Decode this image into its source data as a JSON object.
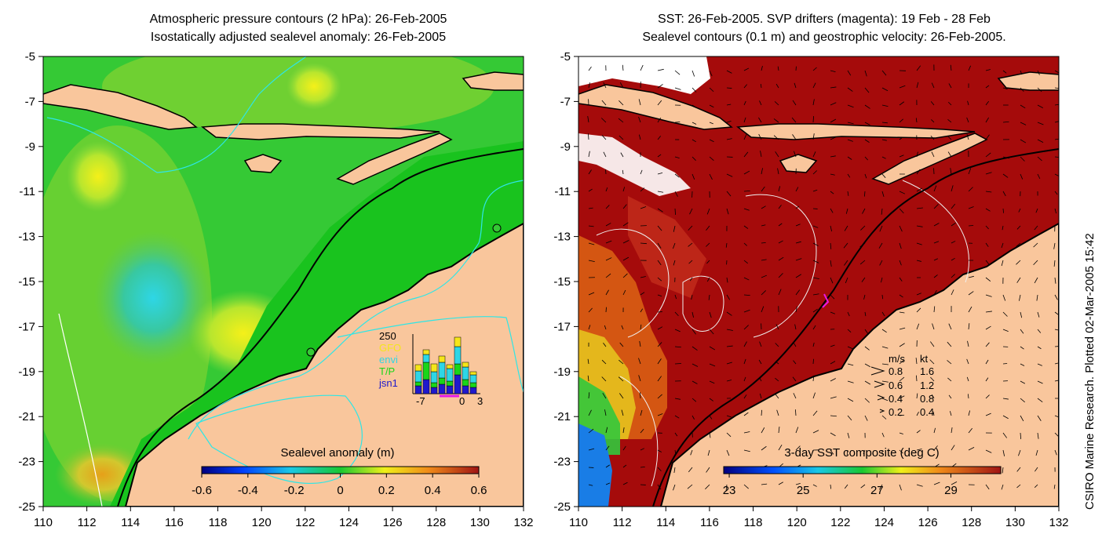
{
  "left_panel": {
    "title_line1": "Atmospheric pressure contours (2 hPa): 26-Feb-2005",
    "title_line2": "Isostatically adjusted sealevel anomaly: 26-Feb-2005",
    "y_ticks": [
      "-5",
      "-7",
      "-9",
      "-11",
      "-13",
      "-15",
      "-17",
      "-19",
      "-21",
      "-23",
      "-25"
    ],
    "x_ticks": [
      "110",
      "112",
      "114",
      "116",
      "118",
      "120",
      "122",
      "124",
      "126",
      "128",
      "130",
      "132"
    ],
    "colorbar_label": "Sealevel anomaly (m)",
    "colorbar_ticks": [
      "-0.6",
      "-0.4",
      "-0.2",
      "0",
      "0.2",
      "0.4",
      "0.6"
    ],
    "inset": {
      "y_top": "250",
      "x_ticks": [
        "-7",
        "0",
        "3"
      ],
      "legend": [
        {
          "label": "GFO",
          "color": "#f5e619"
        },
        {
          "label": "envi",
          "color": "#2ed6e6"
        },
        {
          "label": "T/P",
          "color": "#19d619"
        },
        {
          "label": "jsn1",
          "color": "#1f19cc"
        }
      ]
    }
  },
  "right_panel": {
    "title_line1": "SST: 26-Feb-2005. SVP drifters (magenta): 19 Feb - 28 Feb",
    "title_line2": "Sealevel contours (0.1 m) and geostrophic velocity: 26-Feb-2005.",
    "y_ticks": [
      "-5",
      "-7",
      "-9",
      "-11",
      "-13",
      "-15",
      "-17",
      "-19",
      "-21",
      "-23",
      "-25"
    ],
    "x_ticks": [
      "110",
      "112",
      "114",
      "116",
      "118",
      "120",
      "122",
      "124",
      "126",
      "128",
      "130",
      "132"
    ],
    "colorbar_label": "3-day SST composite (deg C)",
    "colorbar_ticks": [
      "23",
      "25",
      "27",
      "29"
    ],
    "speed_legend": {
      "header_ms": "m/s",
      "header_kt": "kt",
      "rows": [
        {
          "ms": "0.8",
          "kt": "1.6"
        },
        {
          "ms": "0.6",
          "kt": "1.2"
        },
        {
          "ms": "0.4",
          "kt": "0.8"
        },
        {
          "ms": "0.2",
          "kt": "0.4"
        }
      ]
    }
  },
  "credit": "CSIRO Marine Research. Plotted 02-Mar-2005 15:42",
  "colors": {
    "land": "#f9c69c",
    "sea_green": "#35c935",
    "sst_red": "#a50b0b"
  }
}
